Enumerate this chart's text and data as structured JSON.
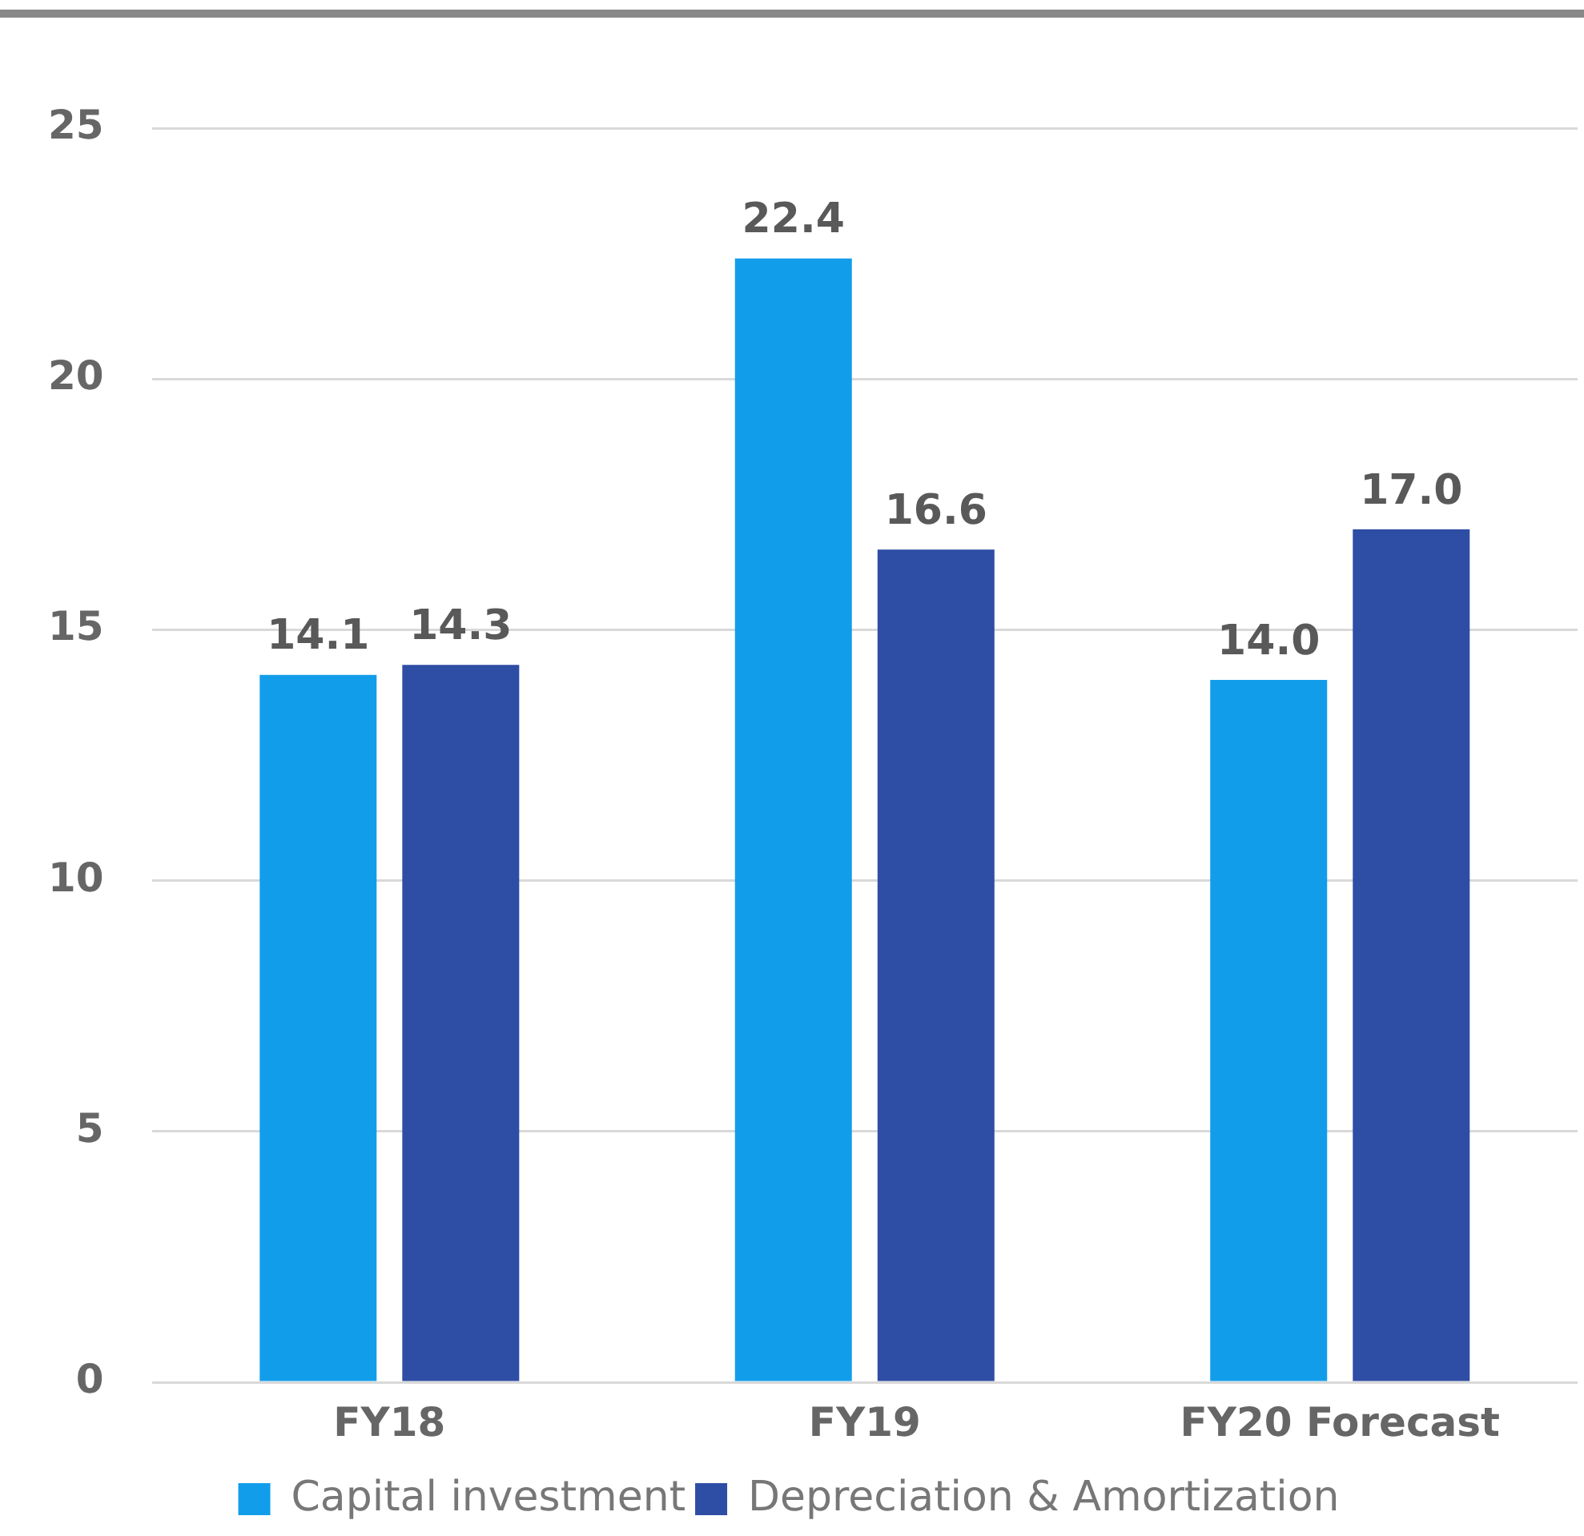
{
  "chart_data": {
    "type": "bar",
    "categories": [
      "FY18",
      "FY19",
      "FY20 Forecast"
    ],
    "series": [
      {
        "name": "Capital investment",
        "color": "#129deb",
        "values": [
          14.1,
          22.4,
          14.0
        ],
        "value_labels": [
          "14.1",
          "22.4",
          "14.0"
        ]
      },
      {
        "name": "Depreciation & Amortization",
        "color": "#2e4da5",
        "values": [
          14.3,
          16.6,
          17.0
        ],
        "value_labels": [
          "14.3",
          "16.6",
          "17.0"
        ]
      }
    ],
    "ylim": [
      0,
      25
    ],
    "yticks": [
      0,
      5,
      10,
      15,
      20,
      25
    ],
    "grid": "y",
    "legend": "bottom"
  }
}
